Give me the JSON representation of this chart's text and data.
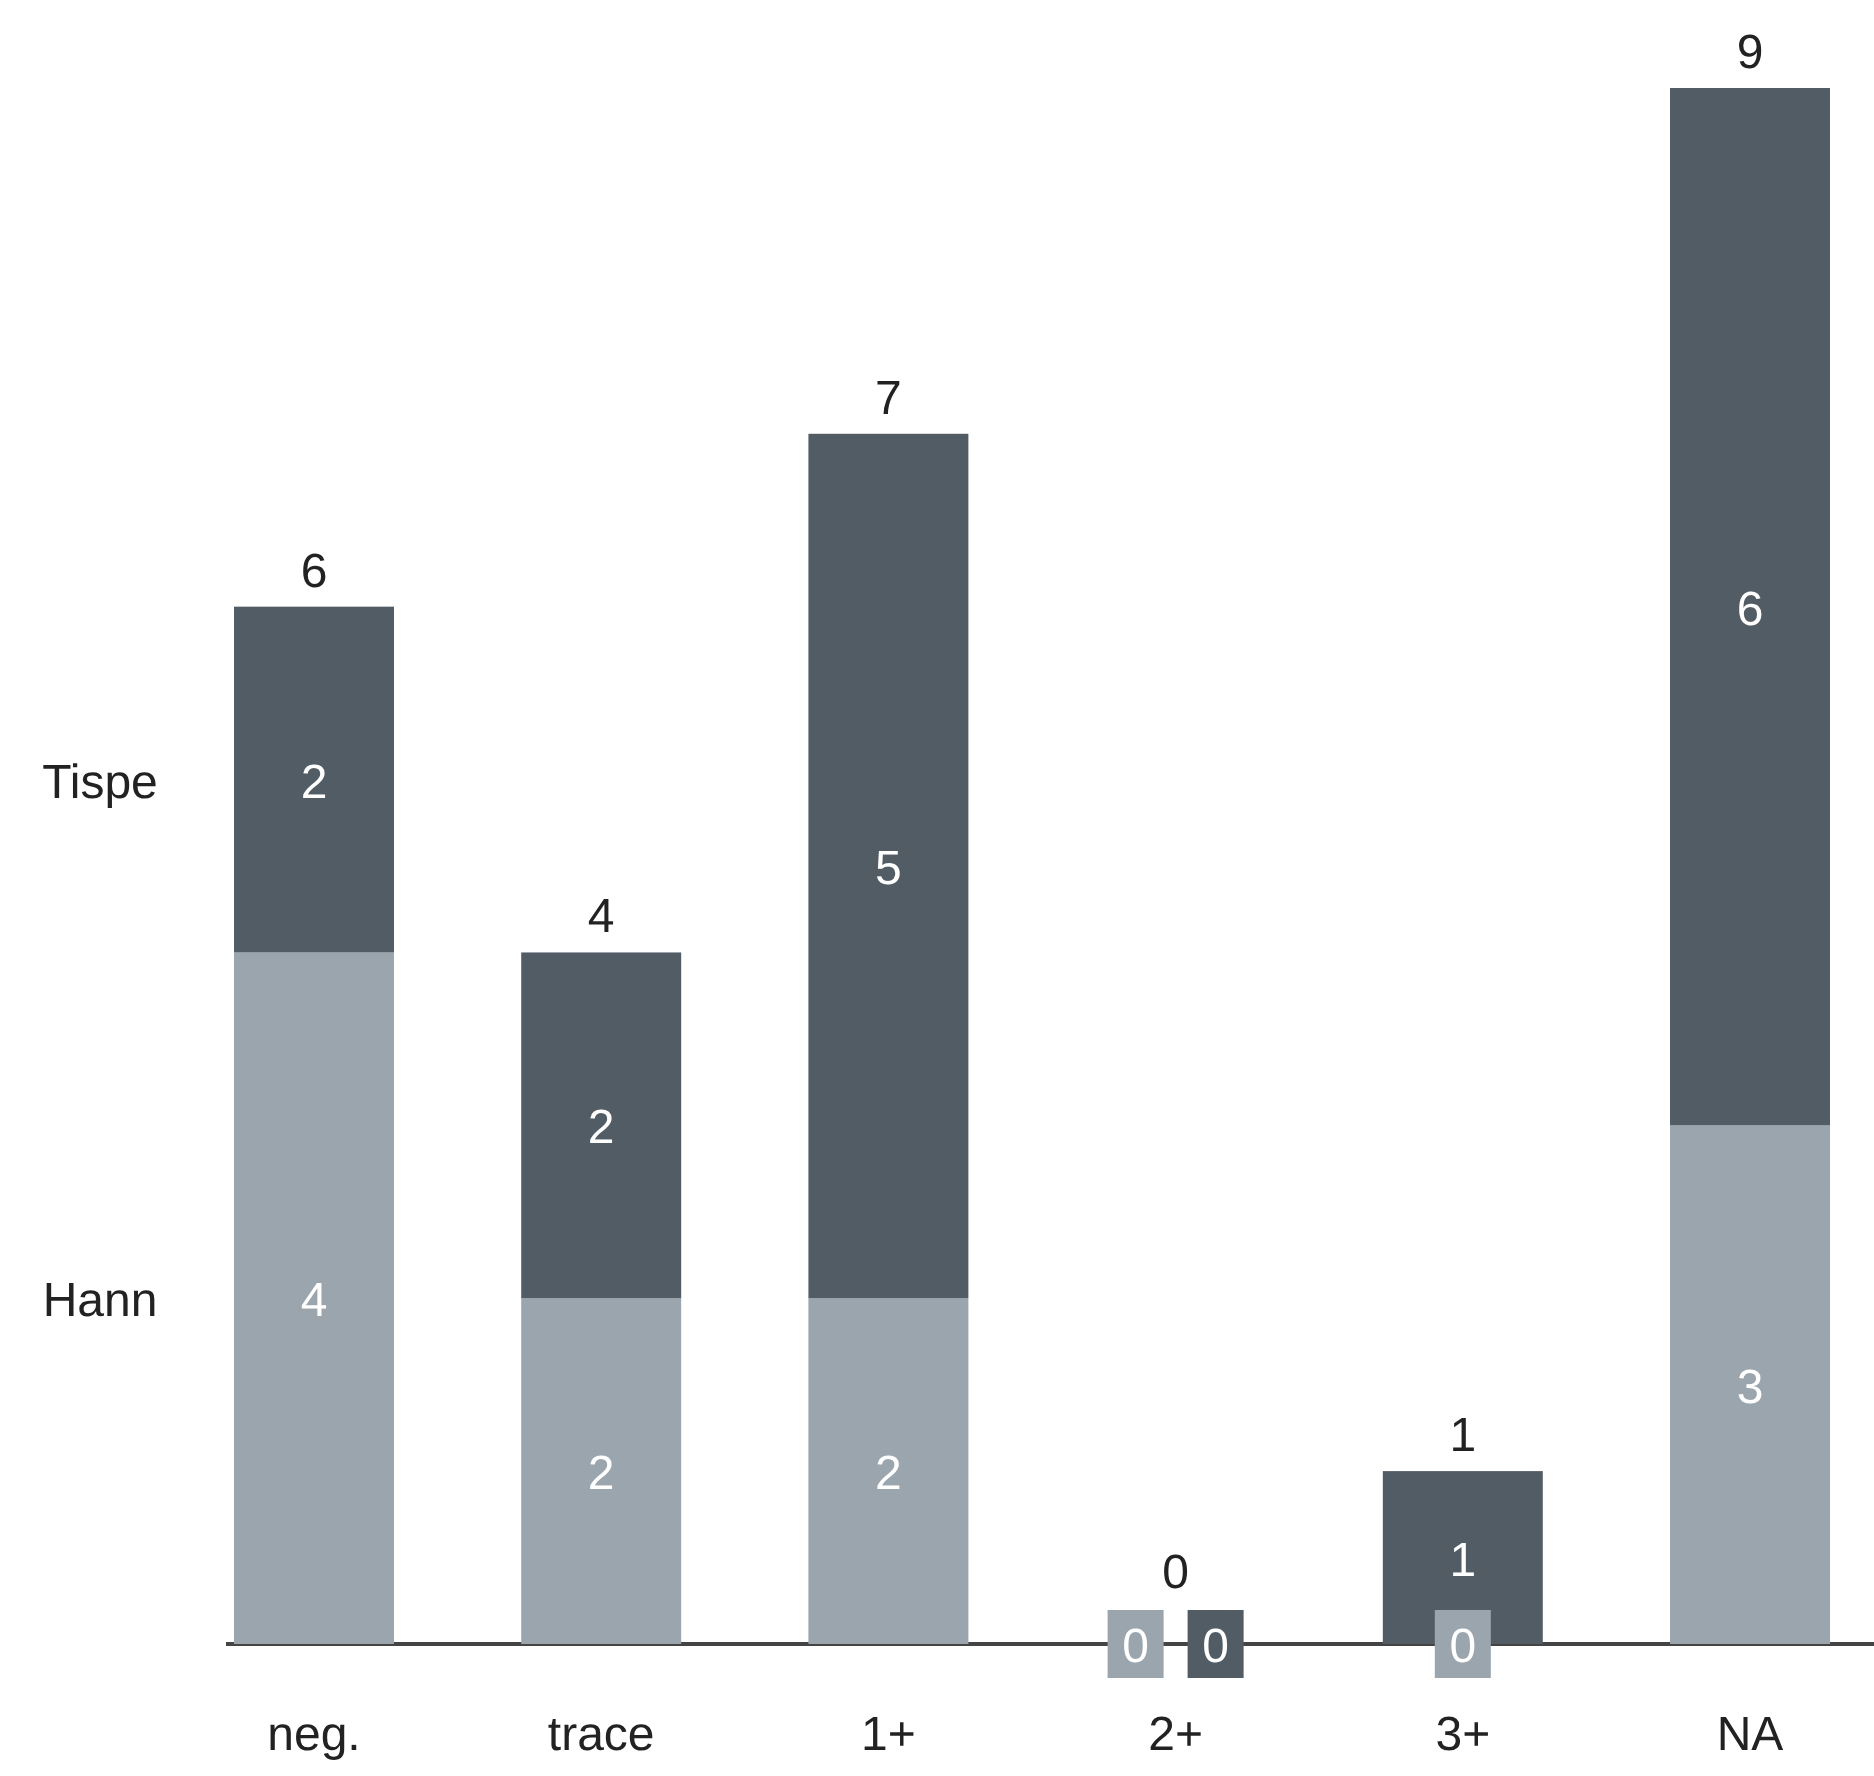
{
  "chart_data": {
    "type": "bar",
    "stacked": true,
    "data_labels": true,
    "categories": [
      "neg.",
      "trace",
      "1+",
      "2+",
      "3+",
      "NA"
    ],
    "series": [
      {
        "name": "Hann",
        "color": "#9aa5ae",
        "values": [
          4,
          2,
          2,
          0,
          0,
          3
        ]
      },
      {
        "name": "Tispe",
        "color": "#525c65",
        "values": [
          2,
          2,
          5,
          0,
          1,
          6
        ]
      }
    ],
    "totals": [
      "6",
      "4",
      "7",
      "0",
      "1",
      "9"
    ]
  }
}
